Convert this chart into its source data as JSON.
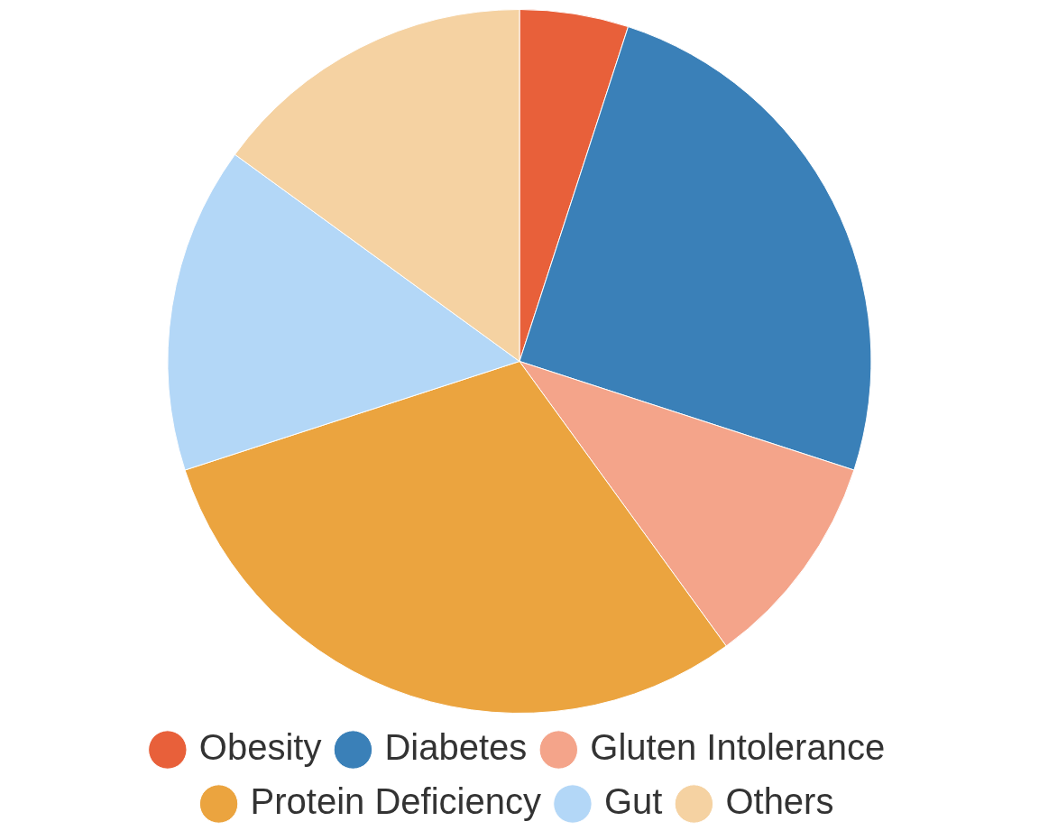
{
  "chart_data": {
    "type": "pie",
    "categories": [
      "Obesity",
      "Diabetes",
      "Gluten Intolerance",
      "Protein Deficiency",
      "Gut",
      "Others"
    ],
    "values": [
      5,
      25,
      10,
      30,
      15,
      15
    ],
    "colors": [
      "#e8603a",
      "#3a80b8",
      "#f4a48a",
      "#eba43f",
      "#b3d7f7",
      "#f5d2a2"
    ],
    "legend": "bottom"
  }
}
